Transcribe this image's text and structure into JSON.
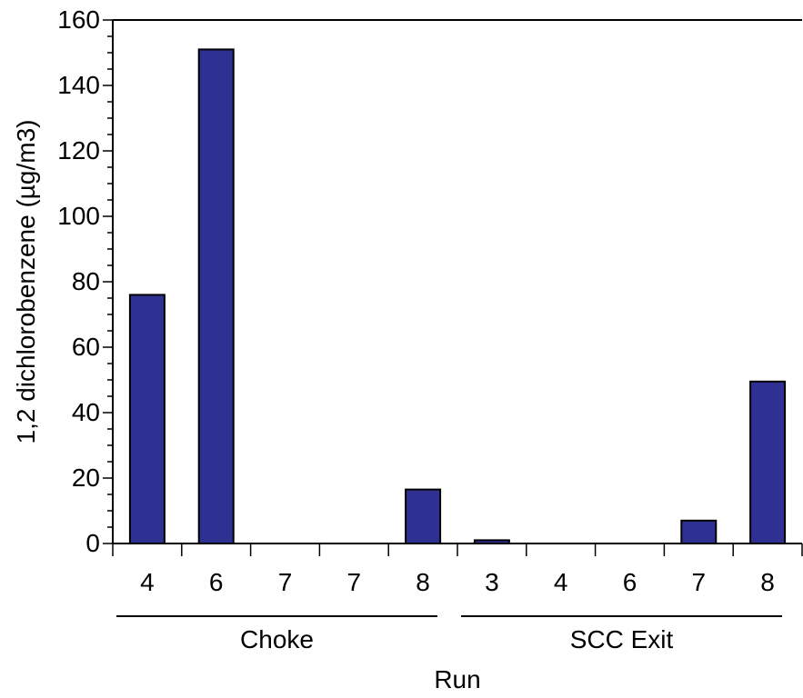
{
  "chart_data": {
    "type": "bar",
    "categories": [
      "4",
      "6",
      "7",
      "7",
      "8",
      "3",
      "4",
      "6",
      "7",
      "8"
    ],
    "groups": [
      {
        "label": "Choke",
        "count": 5
      },
      {
        "label": "SCC Exit",
        "count": 5
      }
    ],
    "values": [
      76,
      151,
      0,
      0,
      16.5,
      1,
      0,
      0,
      7,
      49.5
    ],
    "xlabel": "Run",
    "ylabel": "1,2 dichlorobenzene (µg/m3)",
    "ylim": [
      0,
      160
    ],
    "yticks": [
      0,
      20,
      40,
      60,
      80,
      100,
      120,
      140,
      160
    ],
    "grid": false,
    "bar_color": "#2e3192"
  }
}
